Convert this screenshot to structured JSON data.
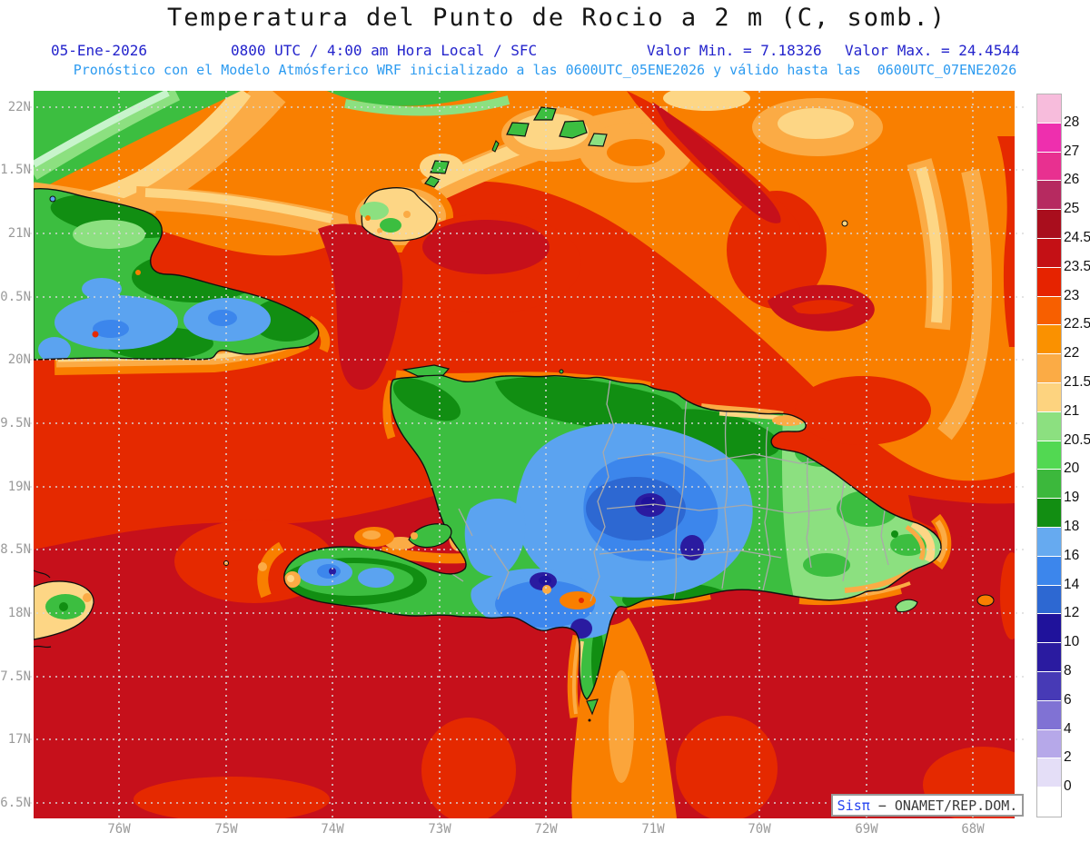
{
  "header": {
    "title": "Temperatura del Punto de Rocio a 2 m (C, somb.)",
    "date": "05-Ene-2026",
    "time_line": "0800 UTC / 4:00 am Hora Local / SFC",
    "valor_min": "Valor Min. = 7.18326",
    "valor_max": "Valor Max. = 24.4544",
    "forecast_line": "Pronóstico con el Modelo Atmósferico WRF inicializado a las 0600UTC_05ENE2026 y válido hasta las  0600UTC_07ENE2026"
  },
  "axes": {
    "lat": [
      "22N",
      "1.5N",
      "21N",
      "0.5N",
      "20N",
      "9.5N",
      "19N",
      "8.5N",
      "18N",
      "7.5N",
      "17N",
      "6.5N"
    ],
    "lon": [
      "76W",
      "75W",
      "74W",
      "73W",
      "72W",
      "71W",
      "70W",
      "69W",
      "68W"
    ]
  },
  "colorbar": {
    "labels": [
      "28",
      "27",
      "26",
      "25",
      "24.5",
      "23.5",
      "23",
      "22.5",
      "22",
      "21.5",
      "21",
      "20.5",
      "20",
      "19",
      "18",
      "16",
      "14",
      "12",
      "10",
      "8",
      "6",
      "4",
      "2",
      "0"
    ],
    "colors": [
      "#f7bcdc",
      "#ee2fae",
      "#e83090",
      "#b62a60",
      "#a90e1d",
      "#c41015",
      "#e62300",
      "#f75f00",
      "#fa9100",
      "#fbab45",
      "#fdd37f",
      "#8ce080",
      "#52d852",
      "#3cb83c",
      "#128e12",
      "#66aaf0",
      "#3c86ec",
      "#2d68d2",
      "#1f129b",
      "#2a1ba0",
      "#473ab6",
      "#8072d4",
      "#b6a8e9",
      "#e4def7",
      "#ffffff"
    ]
  },
  "watermark": {
    "brand": "Sisπ",
    "separator": " − ",
    "org": "ONAMET/REP.DOM."
  },
  "palette": {
    "sea_red": "#e52900",
    "sea_dark_red": "#c6101b",
    "orange": "#f97f00",
    "amber": "#fbab45",
    "pale_yellow": "#fdd685",
    "green": "#3cbe40",
    "light_green": "#8ce080",
    "dark_green": "#118e12",
    "sky_blue": "#5ba3f0",
    "blue": "#3c86ec",
    "deep_blue": "#2d68d2",
    "indigo": "#2a1ba0",
    "header_blue": "#2323cc",
    "subheader_blue": "#2d9bf0",
    "axis_gray": "#9a9a9a"
  }
}
